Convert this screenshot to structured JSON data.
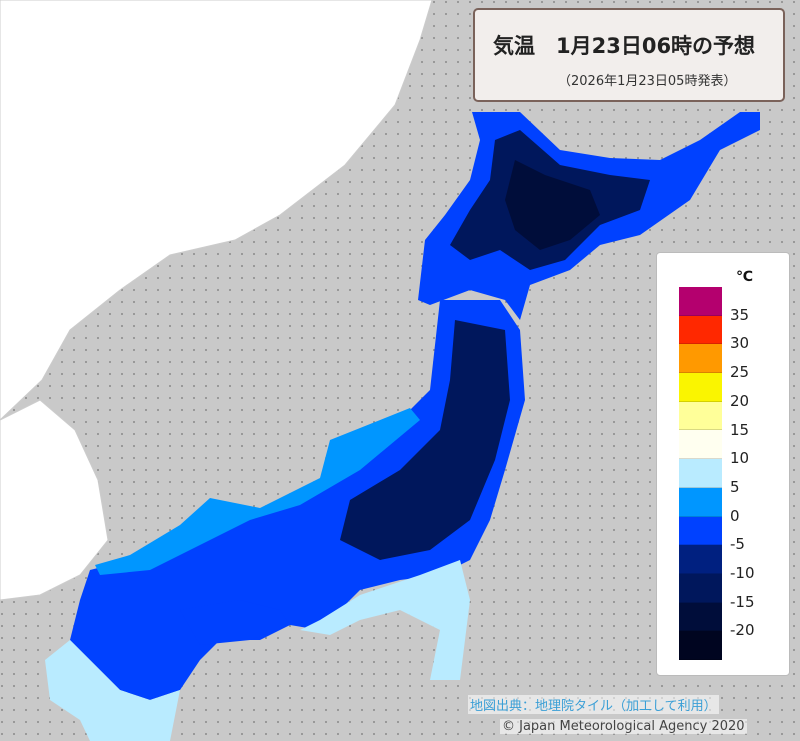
{
  "title": {
    "main": "気温　1月23日06時の予想",
    "issued": "（2026年1月23日05時発表）"
  },
  "legend": {
    "unit": "℃",
    "colors": [
      "#b4006e",
      "#ff2800",
      "#ff9900",
      "#faf500",
      "#ffff99",
      "#fffff0",
      "#b9ebff",
      "#0096ff",
      "#0041ff",
      "#002080",
      "#00175c",
      "#000d3a",
      "#000520"
    ],
    "ticks": [
      "35",
      "30",
      "25",
      "20",
      "15",
      "10",
      "5",
      "0",
      "-5",
      "-10",
      "-15",
      "-20"
    ]
  },
  "credits": {
    "map_source": "地図出典：地理院タイル（加工して利用）",
    "copyright": "© Japan Meteorological Agency 2020"
  }
}
